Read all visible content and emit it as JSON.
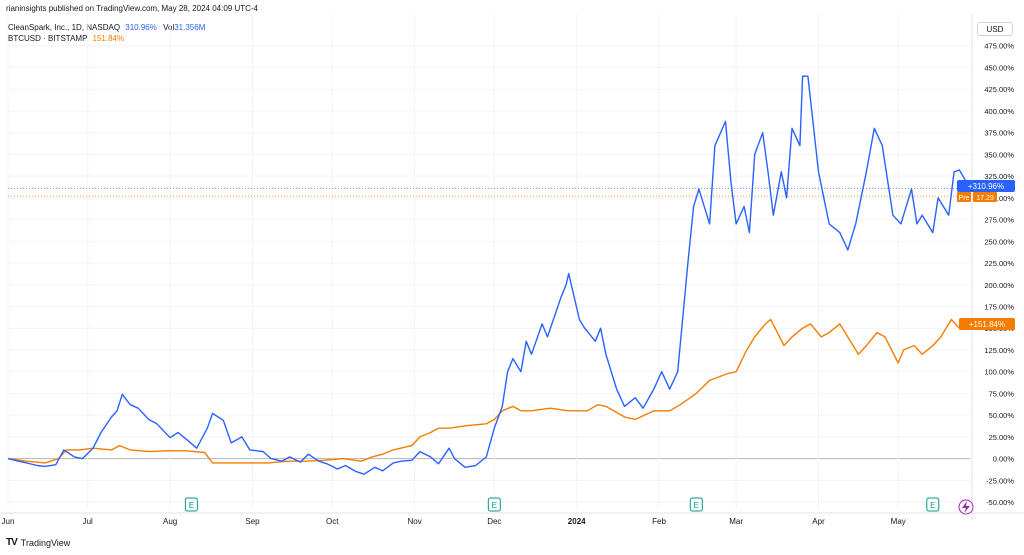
{
  "header": {
    "published_line": "rianinsights published on TradingView.com, May 28, 2024 04:09 UTC-4"
  },
  "legend": {
    "series1_symbol": "CleanSpark, Inc., 1D, NASDAQ",
    "series1_pct": "310.96%",
    "series1_vol_label": "Vol",
    "series1_vol_value": "31.356M",
    "series2_symbol": "BTCUSD · BITSTAMP",
    "series2_pct": "151.84%"
  },
  "currency_label": "USD",
  "price_badges": {
    "clsk": "+310.96%",
    "pre_label": "Pre",
    "pre_value": "17.29",
    "btc": "+151.84%"
  },
  "footer": {
    "brand": "TradingView"
  },
  "colors": {
    "clsk": "#2962ff",
    "btc": "#f57c00",
    "grid": "#f0f3fa",
    "zero": "#b2b5be",
    "earnings": "#089981",
    "lightning": "#9c27b0"
  },
  "chart_data": {
    "type": "line",
    "title": "",
    "ylabel": "",
    "xlabel": "",
    "y_unit": "%",
    "ylim": [
      -58,
      477
    ],
    "y_ticks": [
      "475.00%",
      "450.00%",
      "425.00%",
      "400.00%",
      "375.00%",
      "350.00%",
      "325.00%",
      "300.00%",
      "275.00%",
      "250.00%",
      "225.00%",
      "200.00%",
      "175.00%",
      "150.00%",
      "125.00%",
      "100.00%",
      "75.00%",
      "50.00%",
      "25.00%",
      "0.00%",
      "-25.00%",
      "-50.00%"
    ],
    "x_ticks": [
      "Jun",
      "Jul",
      "Aug",
      "Sep",
      "Oct",
      "Nov",
      "Dec",
      "2024",
      "Feb",
      "Mar",
      "Apr",
      "May"
    ],
    "bold_x_ticks": [
      "2024"
    ],
    "xlim": [
      "2023-06-01",
      "2024-05-28"
    ],
    "x_tick_dates": [
      "2023-06-01",
      "2023-07-01",
      "2023-08-01",
      "2023-09-01",
      "2023-10-01",
      "2023-11-01",
      "2023-12-01",
      "2024-01-01",
      "2024-02-01",
      "2024-03-01",
      "2024-04-01",
      "2024-05-01"
    ],
    "earnings_markers": [
      "2023-08-09",
      "2023-12-01",
      "2024-02-15",
      "2024-05-14"
    ],
    "earnings_label": "E",
    "legend": "top-left",
    "grid": true,
    "series": [
      {
        "name": "CleanSpark, Inc., 1D, NASDAQ",
        "color": "#2962ff",
        "points": [
          [
            "2023-06-01",
            0
          ],
          [
            "2023-06-05",
            -3
          ],
          [
            "2023-06-08",
            -5
          ],
          [
            "2023-06-12",
            -8
          ],
          [
            "2023-06-15",
            -9
          ],
          [
            "2023-06-19",
            -7
          ],
          [
            "2023-06-22",
            10
          ],
          [
            "2023-06-26",
            2
          ],
          [
            "2023-06-29",
            0
          ],
          [
            "2023-07-03",
            12
          ],
          [
            "2023-07-06",
            30
          ],
          [
            "2023-07-10",
            48
          ],
          [
            "2023-07-12",
            55
          ],
          [
            "2023-07-14",
            74
          ],
          [
            "2023-07-17",
            62
          ],
          [
            "2023-07-20",
            58
          ],
          [
            "2023-07-24",
            45
          ],
          [
            "2023-07-27",
            40
          ],
          [
            "2023-08-01",
            24
          ],
          [
            "2023-08-04",
            30
          ],
          [
            "2023-08-08",
            20
          ],
          [
            "2023-08-11",
            12
          ],
          [
            "2023-08-15",
            35
          ],
          [
            "2023-08-17",
            52
          ],
          [
            "2023-08-21",
            44
          ],
          [
            "2023-08-24",
            18
          ],
          [
            "2023-08-28",
            25
          ],
          [
            "2023-08-31",
            10
          ],
          [
            "2023-09-05",
            8
          ],
          [
            "2023-09-08",
            0
          ],
          [
            "2023-09-12",
            -3
          ],
          [
            "2023-09-15",
            2
          ],
          [
            "2023-09-19",
            -4
          ],
          [
            "2023-09-22",
            5
          ],
          [
            "2023-09-26",
            -3
          ],
          [
            "2023-09-29",
            -6
          ],
          [
            "2023-10-03",
            -12
          ],
          [
            "2023-10-06",
            -8
          ],
          [
            "2023-10-10",
            -15
          ],
          [
            "2023-10-13",
            -18
          ],
          [
            "2023-10-17",
            -10
          ],
          [
            "2023-10-20",
            -14
          ],
          [
            "2023-10-24",
            -5
          ],
          [
            "2023-10-27",
            -3
          ],
          [
            "2023-10-31",
            -2
          ],
          [
            "2023-11-03",
            8
          ],
          [
            "2023-11-07",
            2
          ],
          [
            "2023-11-10",
            -6
          ],
          [
            "2023-11-14",
            12
          ],
          [
            "2023-11-16",
            0
          ],
          [
            "2023-11-20",
            -10
          ],
          [
            "2023-11-24",
            -8
          ],
          [
            "2023-11-28",
            2
          ],
          [
            "2023-12-01",
            35
          ],
          [
            "2023-12-04",
            60
          ],
          [
            "2023-12-06",
            100
          ],
          [
            "2023-12-08",
            115
          ],
          [
            "2023-12-11",
            100
          ],
          [
            "2023-12-13",
            135
          ],
          [
            "2023-12-15",
            120
          ],
          [
            "2023-12-19",
            155
          ],
          [
            "2023-12-21",
            140
          ],
          [
            "2023-12-26",
            185
          ],
          [
            "2023-12-28",
            200
          ],
          [
            "2023-12-29",
            213
          ],
          [
            "2024-01-02",
            160
          ],
          [
            "2024-01-04",
            150
          ],
          [
            "2024-01-08",
            135
          ],
          [
            "2024-01-10",
            150
          ],
          [
            "2024-01-12",
            120
          ],
          [
            "2024-01-16",
            80
          ],
          [
            "2024-01-19",
            60
          ],
          [
            "2024-01-23",
            70
          ],
          [
            "2024-01-26",
            58
          ],
          [
            "2024-01-30",
            80
          ],
          [
            "2024-02-02",
            100
          ],
          [
            "2024-02-05",
            80
          ],
          [
            "2024-02-08",
            100
          ],
          [
            "2024-02-12",
            230
          ],
          [
            "2024-02-14",
            290
          ],
          [
            "2024-02-16",
            310
          ],
          [
            "2024-02-20",
            270
          ],
          [
            "2024-02-22",
            360
          ],
          [
            "2024-02-26",
            388
          ],
          [
            "2024-02-28",
            320
          ],
          [
            "2024-03-01",
            270
          ],
          [
            "2024-03-04",
            290
          ],
          [
            "2024-03-06",
            260
          ],
          [
            "2024-03-08",
            350
          ],
          [
            "2024-03-11",
            375
          ],
          [
            "2024-03-13",
            330
          ],
          [
            "2024-03-15",
            280
          ],
          [
            "2024-03-18",
            330
          ],
          [
            "2024-03-20",
            300
          ],
          [
            "2024-03-22",
            380
          ],
          [
            "2024-03-25",
            360
          ],
          [
            "2024-03-26",
            440
          ],
          [
            "2024-03-28",
            440
          ],
          [
            "2024-04-01",
            330
          ],
          [
            "2024-04-03",
            300
          ],
          [
            "2024-04-05",
            270
          ],
          [
            "2024-04-09",
            260
          ],
          [
            "2024-04-12",
            240
          ],
          [
            "2024-04-15",
            270
          ],
          [
            "2024-04-19",
            330
          ],
          [
            "2024-04-22",
            380
          ],
          [
            "2024-04-25",
            360
          ],
          [
            "2024-04-29",
            280
          ],
          [
            "2024-05-02",
            270
          ],
          [
            "2024-05-06",
            310
          ],
          [
            "2024-05-08",
            270
          ],
          [
            "2024-05-10",
            280
          ],
          [
            "2024-05-14",
            260
          ],
          [
            "2024-05-16",
            300
          ],
          [
            "2024-05-20",
            280
          ],
          [
            "2024-05-22",
            330
          ],
          [
            "2024-05-24",
            332
          ],
          [
            "2024-05-28",
            311
          ]
        ]
      },
      {
        "name": "BTCUSD · BITSTAMP",
        "color": "#f57c00",
        "points": [
          [
            "2023-06-01",
            0
          ],
          [
            "2023-06-08",
            -3
          ],
          [
            "2023-06-15",
            -5
          ],
          [
            "2023-06-20",
            0
          ],
          [
            "2023-06-23",
            10
          ],
          [
            "2023-06-28",
            10
          ],
          [
            "2023-07-03",
            12
          ],
          [
            "2023-07-10",
            10
          ],
          [
            "2023-07-13",
            15
          ],
          [
            "2023-07-17",
            10
          ],
          [
            "2023-07-24",
            8
          ],
          [
            "2023-07-31",
            9
          ],
          [
            "2023-08-07",
            9
          ],
          [
            "2023-08-14",
            7
          ],
          [
            "2023-08-17",
            -5
          ],
          [
            "2023-08-24",
            -5
          ],
          [
            "2023-08-31",
            -5
          ],
          [
            "2023-09-07",
            -5
          ],
          [
            "2023-09-14",
            -3
          ],
          [
            "2023-09-21",
            -3
          ],
          [
            "2023-09-28",
            -2
          ],
          [
            "2023-10-05",
            0
          ],
          [
            "2023-10-12",
            -3
          ],
          [
            "2023-10-16",
            2
          ],
          [
            "2023-10-20",
            5
          ],
          [
            "2023-10-24",
            10
          ],
          [
            "2023-10-31",
            15
          ],
          [
            "2023-11-03",
            25
          ],
          [
            "2023-11-07",
            30
          ],
          [
            "2023-11-10",
            35
          ],
          [
            "2023-11-14",
            35
          ],
          [
            "2023-11-21",
            38
          ],
          [
            "2023-11-28",
            40
          ],
          [
            "2023-12-01",
            45
          ],
          [
            "2023-12-04",
            55
          ],
          [
            "2023-12-08",
            60
          ],
          [
            "2023-12-11",
            55
          ],
          [
            "2023-12-15",
            55
          ],
          [
            "2023-12-22",
            58
          ],
          [
            "2023-12-29",
            55
          ],
          [
            "2024-01-05",
            55
          ],
          [
            "2024-01-09",
            62
          ],
          [
            "2024-01-12",
            60
          ],
          [
            "2024-01-19",
            48
          ],
          [
            "2024-01-23",
            45
          ],
          [
            "2024-01-30",
            55
          ],
          [
            "2024-02-05",
            55
          ],
          [
            "2024-02-09",
            62
          ],
          [
            "2024-02-15",
            75
          ],
          [
            "2024-02-20",
            90
          ],
          [
            "2024-02-27",
            98
          ],
          [
            "2024-03-01",
            100
          ],
          [
            "2024-03-05",
            125
          ],
          [
            "2024-03-08",
            140
          ],
          [
            "2024-03-12",
            155
          ],
          [
            "2024-03-14",
            160
          ],
          [
            "2024-03-19",
            130
          ],
          [
            "2024-03-22",
            140
          ],
          [
            "2024-03-26",
            150
          ],
          [
            "2024-03-29",
            155
          ],
          [
            "2024-04-02",
            140
          ],
          [
            "2024-04-05",
            145
          ],
          [
            "2024-04-09",
            155
          ],
          [
            "2024-04-12",
            140
          ],
          [
            "2024-04-16",
            120
          ],
          [
            "2024-04-19",
            130
          ],
          [
            "2024-04-23",
            145
          ],
          [
            "2024-04-26",
            140
          ],
          [
            "2024-05-01",
            110
          ],
          [
            "2024-05-03",
            125
          ],
          [
            "2024-05-07",
            130
          ],
          [
            "2024-05-10",
            120
          ],
          [
            "2024-05-14",
            130
          ],
          [
            "2024-05-17",
            140
          ],
          [
            "2024-05-21",
            160
          ],
          [
            "2024-05-24",
            150
          ],
          [
            "2024-05-28",
            152
          ]
        ]
      }
    ]
  }
}
